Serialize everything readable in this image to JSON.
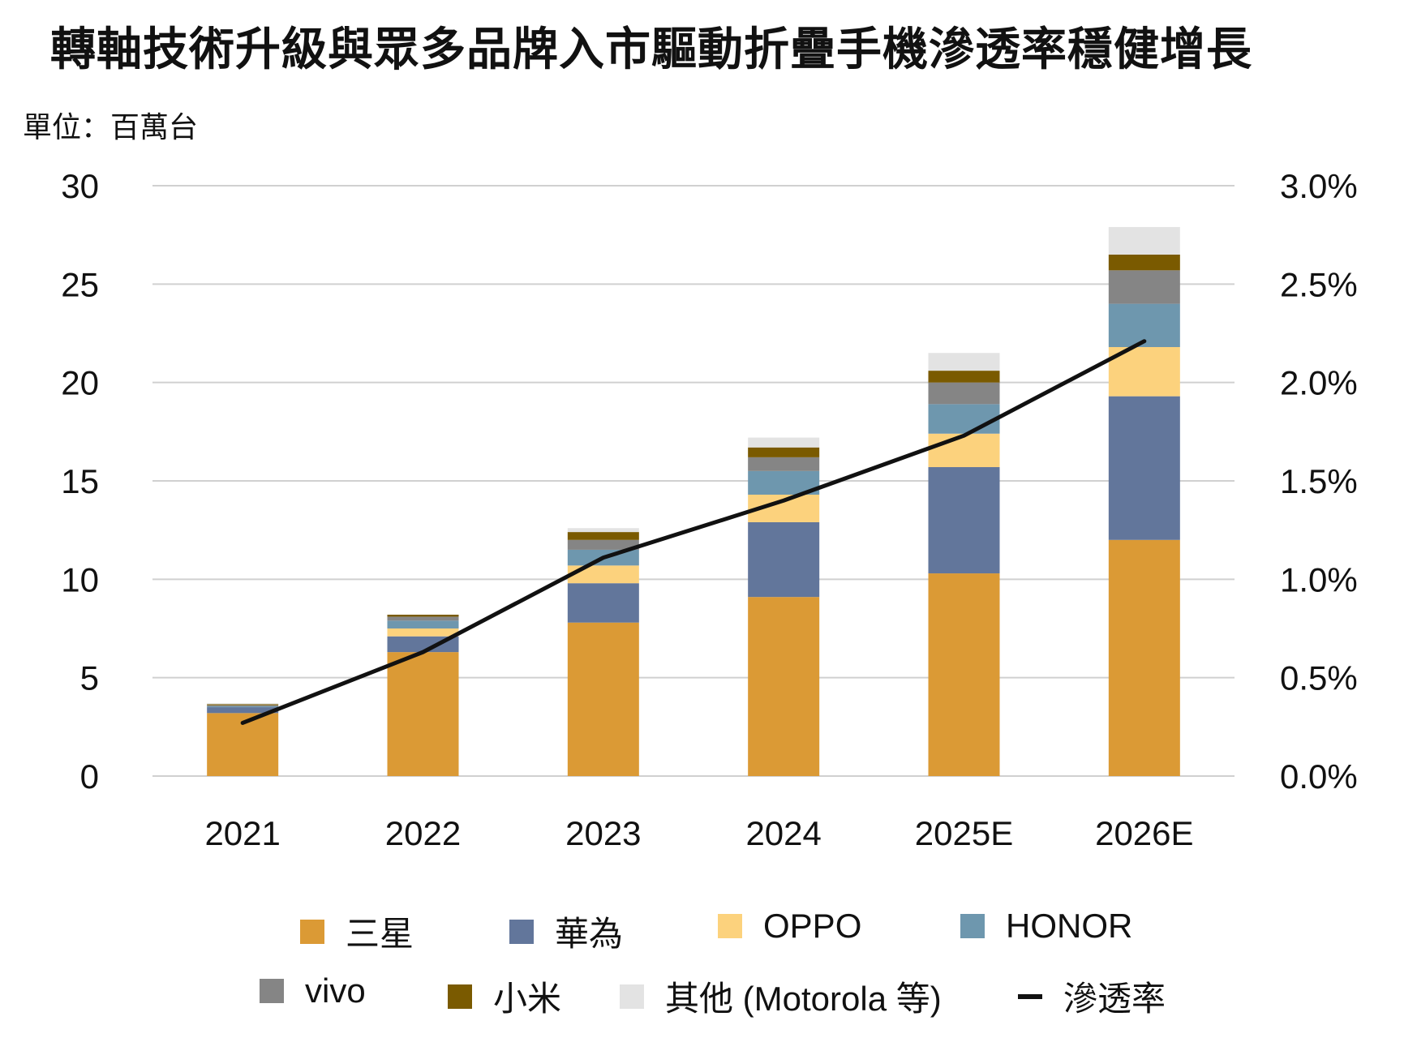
{
  "title": "轉軸技術升級與眾多品牌入市驅動折疊手機滲透率穩健增長",
  "unit_label": "單位：百萬台",
  "chart_data": {
    "type": "bar",
    "stacked": true,
    "categories": [
      "2021",
      "2022",
      "2023",
      "2024",
      "2025E",
      "2026E"
    ],
    "left_axis": {
      "range": [
        0,
        30
      ],
      "ticks": [
        "0",
        "5",
        "10",
        "15",
        "20",
        "25",
        "30"
      ],
      "values": [
        0,
        5,
        10,
        15,
        20,
        25,
        30
      ]
    },
    "right_axis": {
      "range": [
        0,
        0.03
      ],
      "ticks": [
        "0.0%",
        "0.5%",
        "1.0%",
        "1.5%",
        "2.0%",
        "2.5%",
        "3.0%"
      ],
      "values": [
        0,
        0.005,
        0.01,
        0.015,
        0.02,
        0.025,
        0.03
      ]
    },
    "grid": true,
    "legend_position": "bottom",
    "series": [
      {
        "name": "三星",
        "color": "#DB9A35",
        "values": [
          3.2,
          6.3,
          7.8,
          9.1,
          10.3,
          12.0
        ]
      },
      {
        "name": "華為",
        "color": "#62769B",
        "values": [
          0.3,
          0.8,
          2.0,
          3.8,
          5.4,
          7.3
        ]
      },
      {
        "name": "OPPO",
        "color": "#FCD27D",
        "values": [
          0.0,
          0.4,
          0.9,
          1.4,
          1.7,
          2.5
        ]
      },
      {
        "name": "HONOR",
        "color": "#6E97AE",
        "values": [
          0.05,
          0.4,
          0.8,
          1.2,
          1.5,
          2.2
        ]
      },
      {
        "name": "vivo",
        "color": "#858585",
        "values": [
          0.05,
          0.2,
          0.5,
          0.7,
          1.1,
          1.7
        ]
      },
      {
        "name": "小米",
        "color": "#7A5A00",
        "values": [
          0.05,
          0.1,
          0.4,
          0.5,
          0.6,
          0.8
        ]
      },
      {
        "name": "其他 (Motorola 等)",
        "color": "#E3E3E3",
        "values": [
          0.05,
          0.0,
          0.2,
          0.5,
          0.9,
          1.4
        ]
      }
    ],
    "line": {
      "name": "滲透率",
      "color": "#111111",
      "values": [
        0.0027,
        0.0063,
        0.0111,
        0.014,
        0.0173,
        0.0221
      ]
    }
  }
}
